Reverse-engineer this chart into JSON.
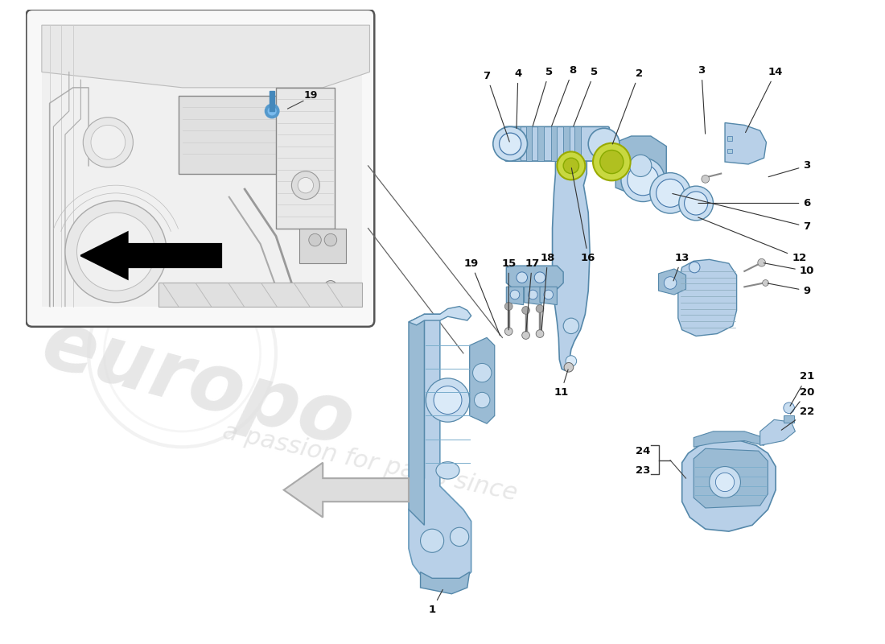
{
  "bg_color": "#ffffff",
  "lb": "#b8d0e8",
  "lb2": "#c8ddf0",
  "lb3": "#9abbd4",
  "lb_dark": "#7aaac8",
  "yg": "#c8d840",
  "line_col": "#444444",
  "part_col": "#111111",
  "watermark1": "europo",
  "watermark2": "a passion for parts since",
  "wm_col": "#d8d8d8",
  "inset_bg": "#f8f8f8"
}
